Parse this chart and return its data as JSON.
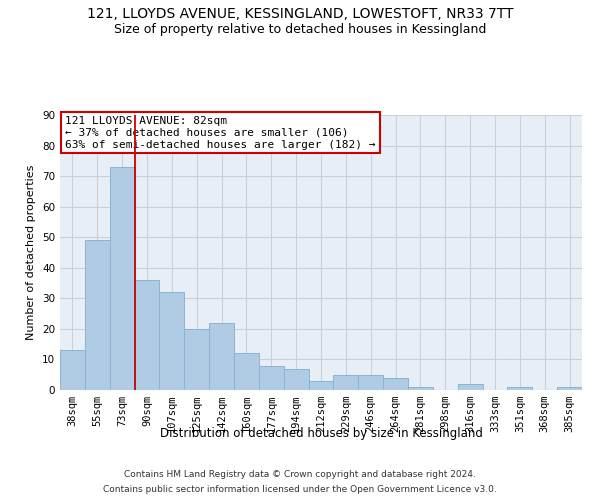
{
  "title_line1": "121, LLOYDS AVENUE, KESSINGLAND, LOWESTOFT, NR33 7TT",
  "title_line2": "Size of property relative to detached houses in Kessingland",
  "xlabel": "Distribution of detached houses by size in Kessingland",
  "ylabel": "Number of detached properties",
  "categories": [
    "38sqm",
    "55sqm",
    "73sqm",
    "90sqm",
    "107sqm",
    "125sqm",
    "142sqm",
    "160sqm",
    "177sqm",
    "194sqm",
    "212sqm",
    "229sqm",
    "246sqm",
    "264sqm",
    "281sqm",
    "298sqm",
    "316sqm",
    "333sqm",
    "351sqm",
    "368sqm",
    "385sqm"
  ],
  "values": [
    13,
    49,
    73,
    36,
    32,
    20,
    22,
    12,
    8,
    7,
    3,
    5,
    5,
    4,
    1,
    0,
    2,
    0,
    1,
    0,
    1
  ],
  "bar_color": "#b0cce4",
  "bar_edge_color": "#8ab4d4",
  "vline_x": 2.5,
  "vline_color": "#cc0000",
  "annotation_text": "121 LLOYDS AVENUE: 82sqm\n← 37% of detached houses are smaller (106)\n63% of semi-detached houses are larger (182) →",
  "annotation_box_color": "white",
  "annotation_box_edge_color": "#cc0000",
  "ylim": [
    0,
    90
  ],
  "yticks": [
    0,
    10,
    20,
    30,
    40,
    50,
    60,
    70,
    80,
    90
  ],
  "grid_color": "#c8d0dc",
  "bg_color": "#e8eef6",
  "footer_line1": "Contains HM Land Registry data © Crown copyright and database right 2024.",
  "footer_line2": "Contains public sector information licensed under the Open Government Licence v3.0.",
  "title_fontsize": 10,
  "subtitle_fontsize": 9,
  "ylabel_fontsize": 8,
  "xlabel_fontsize": 8.5,
  "tick_fontsize": 7.5,
  "annotation_fontsize": 8,
  "footer_fontsize": 6.5
}
